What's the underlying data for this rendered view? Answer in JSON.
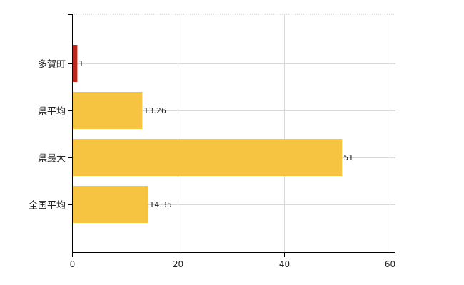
{
  "chart_data": {
    "type": "bar",
    "orientation": "horizontal",
    "categories": [
      "多賀町",
      "県平均",
      "県最大",
      "全国平均"
    ],
    "values": [
      1,
      13.26,
      51,
      14.35
    ],
    "value_labels": [
      "1",
      "13.26",
      "51",
      "14.35"
    ],
    "bar_colors": [
      "#c0261c",
      "#f6c440",
      "#f6c440",
      "#f6c440"
    ],
    "title": "",
    "xlabel": "",
    "ylabel": "",
    "xlim": [
      0,
      60
    ],
    "x_ticks": [
      0,
      20,
      40,
      60
    ],
    "x_tick_labels": [
      "0",
      "20",
      "40",
      "60"
    ],
    "grid": true,
    "legend": "none"
  }
}
